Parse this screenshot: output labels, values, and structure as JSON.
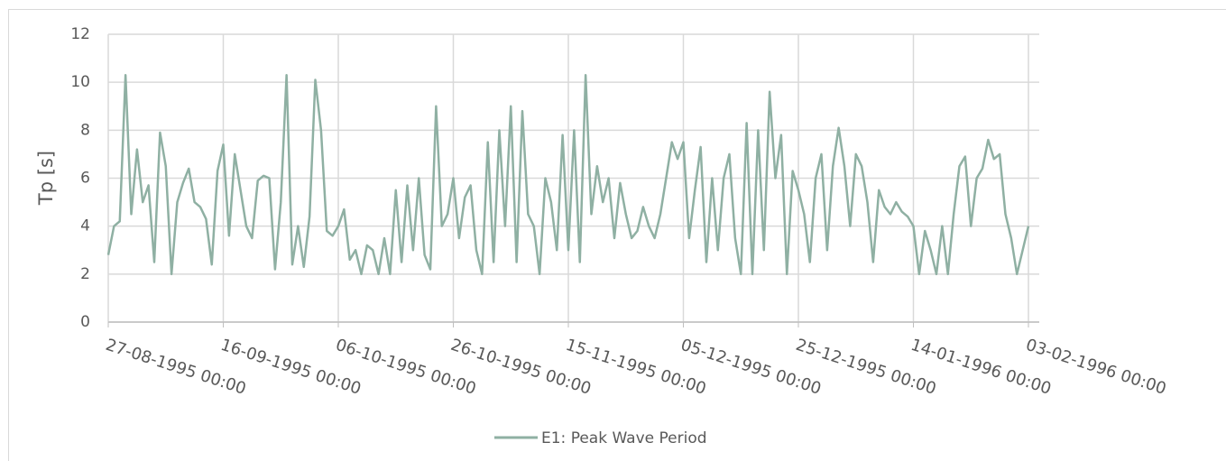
{
  "chart_data": {
    "type": "line",
    "y_label": "Tp [s]",
    "x": [
      "1995-08-27",
      "1995-08-28",
      "1995-08-29",
      "1995-08-30",
      "1995-08-31",
      "1995-09-01",
      "1995-09-02",
      "1995-09-03",
      "1995-09-04",
      "1995-09-05",
      "1995-09-06",
      "1995-09-07",
      "1995-09-08",
      "1995-09-09",
      "1995-09-10",
      "1995-09-11",
      "1995-09-12",
      "1995-09-13",
      "1995-09-14",
      "1995-09-15",
      "1995-09-16",
      "1995-09-17",
      "1995-09-18",
      "1995-09-19",
      "1995-09-20",
      "1995-09-21",
      "1995-09-22",
      "1995-09-23",
      "1995-09-24",
      "1995-09-25",
      "1995-09-26",
      "1995-09-27",
      "1995-09-28",
      "1995-09-29",
      "1995-09-30",
      "1995-10-01",
      "1995-10-02",
      "1995-10-03",
      "1995-10-04",
      "1995-10-05",
      "1995-10-06",
      "1995-10-07",
      "1995-10-08",
      "1995-10-09",
      "1995-10-10",
      "1995-10-11",
      "1995-10-12",
      "1995-10-13",
      "1995-10-14",
      "1995-10-15",
      "1995-10-16",
      "1995-10-17",
      "1995-10-18",
      "1995-10-19",
      "1995-10-20",
      "1995-10-21",
      "1995-10-22",
      "1995-10-23",
      "1995-10-24",
      "1995-10-25",
      "1995-10-26",
      "1995-10-27",
      "1995-10-28",
      "1995-10-29",
      "1995-10-30",
      "1995-10-31",
      "1995-11-01",
      "1995-11-02",
      "1995-11-03",
      "1995-11-04",
      "1995-11-05",
      "1995-11-06",
      "1995-11-07",
      "1995-11-08",
      "1995-11-09",
      "1995-11-10",
      "1995-11-11",
      "1995-11-12",
      "1995-11-13",
      "1995-11-14",
      "1995-11-15",
      "1995-11-16",
      "1995-11-17",
      "1995-11-18",
      "1995-11-19",
      "1995-11-20",
      "1995-11-21",
      "1995-11-22",
      "1995-11-23",
      "1995-11-24",
      "1995-11-25",
      "1995-11-26",
      "1995-11-27",
      "1995-11-28",
      "1995-11-29",
      "1995-11-30",
      "1995-12-01",
      "1995-12-02",
      "1995-12-03",
      "1995-12-04",
      "1995-12-05",
      "1995-12-06",
      "1995-12-07",
      "1995-12-08",
      "1995-12-09",
      "1995-12-10",
      "1995-12-11",
      "1995-12-12",
      "1995-12-13",
      "1995-12-14",
      "1995-12-15",
      "1995-12-16",
      "1995-12-17",
      "1995-12-18",
      "1995-12-19",
      "1995-12-20",
      "1995-12-21",
      "1995-12-22",
      "1995-12-23",
      "1995-12-24",
      "1995-12-25",
      "1995-12-26",
      "1995-12-27",
      "1995-12-28",
      "1995-12-29",
      "1995-12-30",
      "1995-12-31",
      "1996-01-01",
      "1996-01-02",
      "1996-01-03",
      "1996-01-04",
      "1996-01-05",
      "1996-01-06",
      "1996-01-07",
      "1996-01-08",
      "1996-01-09",
      "1996-01-10",
      "1996-01-11",
      "1996-01-12",
      "1996-01-13",
      "1996-01-14",
      "1996-01-15",
      "1996-01-16",
      "1996-01-17",
      "1996-01-18",
      "1996-01-19",
      "1996-01-20",
      "1996-01-21",
      "1996-01-22",
      "1996-01-23",
      "1996-01-24",
      "1996-01-25",
      "1996-01-26",
      "1996-01-27",
      "1996-01-28",
      "1996-01-29",
      "1996-01-30",
      "1996-01-31",
      "1996-02-01",
      "1996-02-02",
      "1996-02-03"
    ],
    "series": [
      {
        "name": "E1: Peak Wave Period",
        "color": "#8fb0a3",
        "values": [
          2.8,
          4.0,
          4.2,
          10.3,
          4.5,
          7.2,
          5.0,
          5.7,
          2.5,
          7.9,
          6.5,
          2.0,
          5.0,
          5.8,
          6.4,
          5.0,
          4.8,
          4.3,
          2.4,
          6.3,
          7.4,
          3.6,
          7.0,
          5.5,
          4.0,
          3.5,
          5.9,
          6.1,
          6.0,
          2.2,
          5.0,
          10.3,
          2.4,
          4.0,
          2.3,
          4.4,
          10.1,
          8.0,
          3.8,
          3.6,
          4.0,
          4.7,
          2.6,
          3.0,
          2.0,
          3.2,
          3.0,
          2.0,
          3.5,
          2.0,
          5.5,
          2.5,
          5.7,
          3.0,
          6.0,
          2.8,
          2.2,
          9.0,
          4.0,
          4.5,
          6.0,
          3.5,
          5.2,
          5.7,
          3.0,
          2.0,
          7.5,
          2.5,
          8.0,
          4.0,
          9.0,
          2.5,
          8.8,
          4.5,
          4.0,
          2.0,
          6.0,
          5.0,
          3.0,
          7.8,
          3.0,
          8.0,
          2.5,
          10.3,
          4.5,
          6.5,
          5.0,
          6.0,
          3.5,
          5.8,
          4.5,
          3.5,
          3.8,
          4.8,
          4.0,
          3.5,
          4.5,
          6.0,
          7.5,
          6.8,
          7.5,
          3.5,
          5.5,
          7.3,
          2.5,
          6.0,
          3.0,
          6.0,
          7.0,
          3.5,
          2.0,
          8.3,
          2.0,
          8.0,
          3.0,
          9.6,
          6.0,
          7.8,
          2.0,
          6.3,
          5.5,
          4.5,
          2.5,
          6.0,
          7.0,
          3.0,
          6.5,
          8.1,
          6.5,
          4.0,
          7.0,
          6.5,
          5.0,
          2.5,
          5.5,
          4.8,
          4.5,
          5.0,
          4.6,
          4.4,
          4.0,
          2.0,
          3.8,
          3.0,
          2.0,
          4.0,
          2.0,
          4.5,
          6.5,
          6.9,
          4.0,
          6.0,
          6.4,
          7.6,
          6.8,
          7.0,
          4.5,
          3.5,
          2.0,
          3.0,
          4.0
        ]
      }
    ],
    "xlim": [
      "1995-08-27",
      "1996-02-03"
    ],
    "xticks": [
      {
        "value": "1995-08-27",
        "label": "27-08-1995 00:00"
      },
      {
        "value": "1995-09-16",
        "label": "16-09-1995 00:00"
      },
      {
        "value": "1995-10-06",
        "label": "06-10-1995 00:00"
      },
      {
        "value": "1995-10-26",
        "label": "26-10-1995 00:00"
      },
      {
        "value": "1995-11-15",
        "label": "15-11-1995 00:00"
      },
      {
        "value": "1995-12-05",
        "label": "05-12-1995 00:00"
      },
      {
        "value": "1995-12-25",
        "label": "25-12-1995 00:00"
      },
      {
        "value": "1996-01-14",
        "label": "14-01-1996 00:00"
      },
      {
        "value": "1996-02-03",
        "label": "03-02-1996 00:00"
      }
    ],
    "ylim": [
      0,
      12
    ],
    "yticks": [
      0,
      2,
      4,
      6,
      8,
      10,
      12
    ],
    "grid": true,
    "legend": "bottom"
  }
}
